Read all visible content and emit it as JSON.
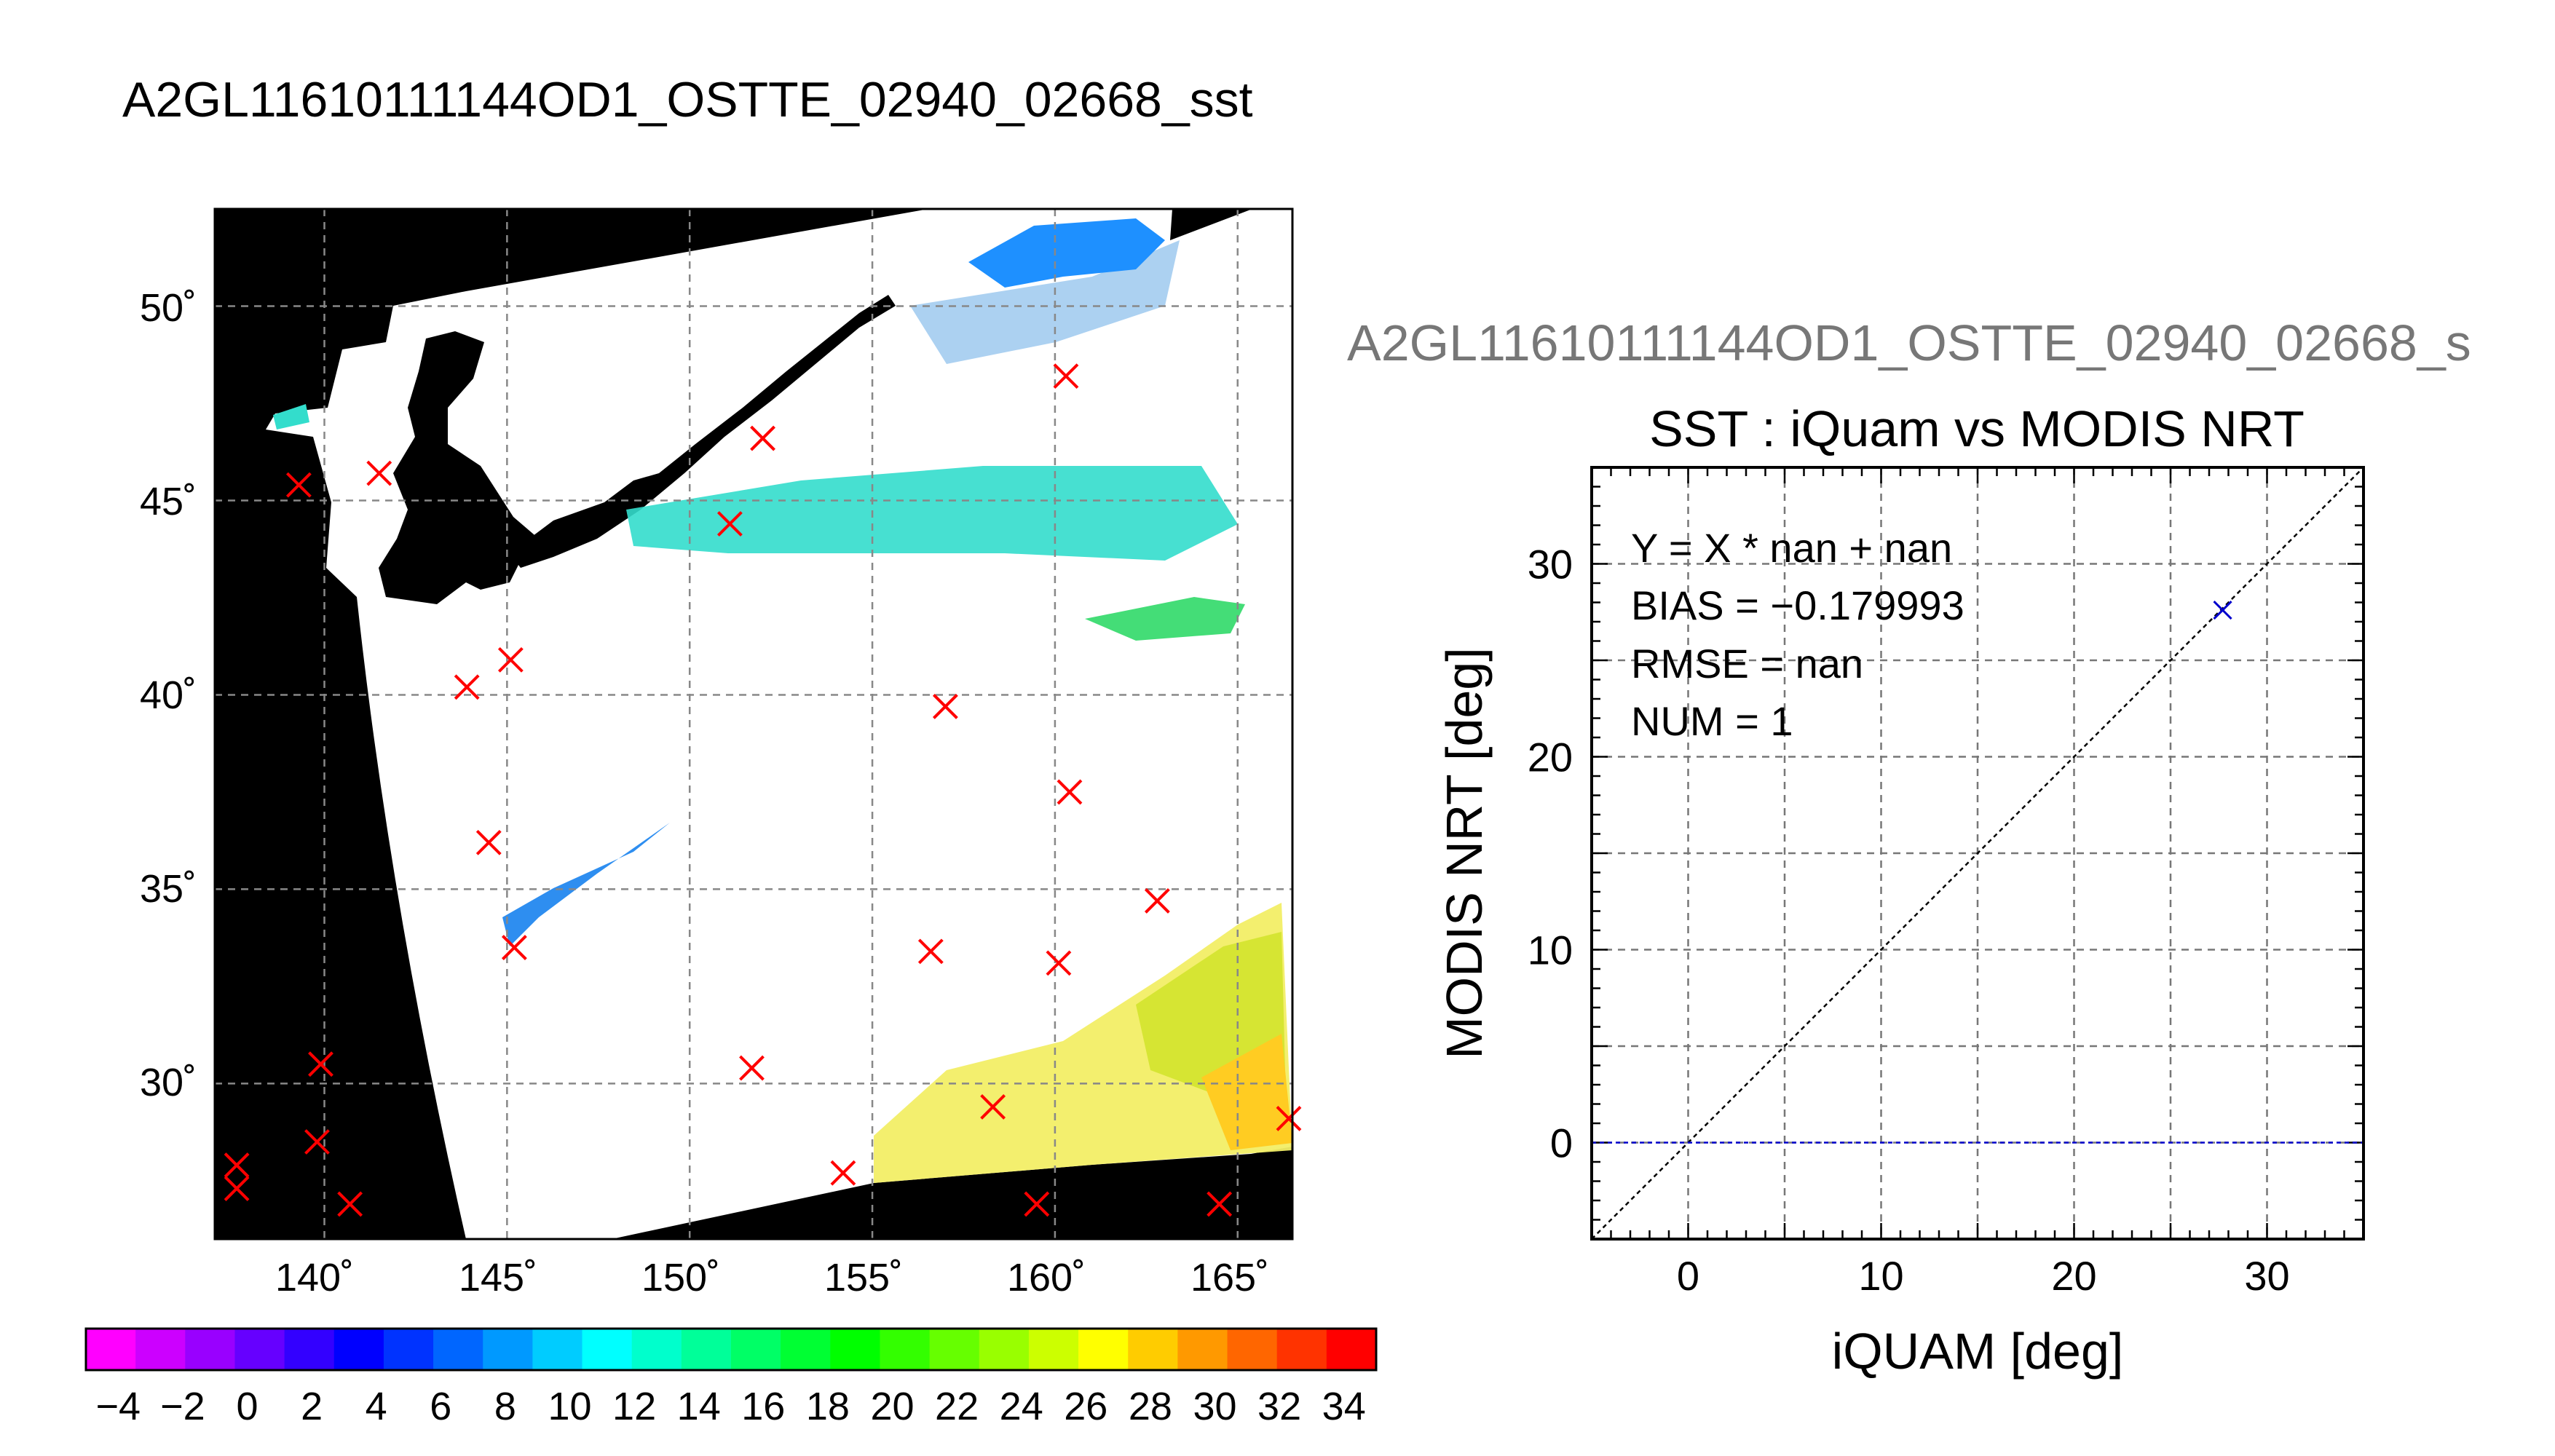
{
  "chart_data": [
    {
      "type": "map",
      "title": "A2GL11610111144OD1_OSTTE_02940_02668_sst",
      "xlim": [
        137,
        166.5
      ],
      "ylim": [
        26,
        52.5
      ],
      "xticks": [
        140,
        145,
        150,
        155,
        160,
        165
      ],
      "yticks": [
        30,
        35,
        40,
        45,
        50
      ],
      "xtick_labels": [
        "140˚",
        "145˚",
        "150˚",
        "155˚",
        "160˚",
        "165˚"
      ],
      "ytick_labels": [
        "30˚",
        "35˚",
        "40˚",
        "45˚",
        "50˚"
      ],
      "grid": true,
      "marker_color": "#ff0000",
      "background_color": "#000000",
      "swath_color": "#ffffff",
      "markers": [
        {
          "lon": 139.3,
          "lat": 45.4
        },
        {
          "lon": 141.5,
          "lat": 45.7
        },
        {
          "lon": 151.1,
          "lat": 44.4
        },
        {
          "lon": 152.0,
          "lat": 46.6
        },
        {
          "lon": 160.3,
          "lat": 48.2
        },
        {
          "lon": 143.9,
          "lat": 40.2
        },
        {
          "lon": 145.1,
          "lat": 40.9
        },
        {
          "lon": 157.0,
          "lat": 39.7
        },
        {
          "lon": 160.4,
          "lat": 37.5
        },
        {
          "lon": 144.5,
          "lat": 36.2
        },
        {
          "lon": 145.2,
          "lat": 33.5
        },
        {
          "lon": 156.6,
          "lat": 33.4
        },
        {
          "lon": 160.1,
          "lat": 33.1
        },
        {
          "lon": 162.8,
          "lat": 34.7
        },
        {
          "lon": 139.9,
          "lat": 30.5
        },
        {
          "lon": 151.7,
          "lat": 30.4
        },
        {
          "lon": 158.3,
          "lat": 29.4
        },
        {
          "lon": 139.8,
          "lat": 28.5
        },
        {
          "lon": 137.6,
          "lat": 27.9
        },
        {
          "lon": 137.6,
          "lat": 27.3
        },
        {
          "lon": 140.7,
          "lat": 26.9
        },
        {
          "lon": 154.2,
          "lat": 27.7
        },
        {
          "lon": 159.5,
          "lat": 26.9
        },
        {
          "lon": 164.5,
          "lat": 26.9
        },
        {
          "lon": 166.4,
          "lat": 29.1
        }
      ]
    },
    {
      "type": "colorbar",
      "range": [
        -5,
        35
      ],
      "tick_labels": [
        "−4",
        "−2",
        "0",
        "2",
        "4",
        "6",
        "8",
        "10",
        "12",
        "14",
        "16",
        "18",
        "20",
        "22",
        "24",
        "26",
        "28",
        "30",
        "32",
        "34"
      ],
      "colors": [
        "#ff00ff",
        "#cc00ff",
        "#9900ff",
        "#6600ff",
        "#3300ff",
        "#0000ff",
        "#0033ff",
        "#0066ff",
        "#0099ff",
        "#00ccff",
        "#00ffff",
        "#00ffcc",
        "#00ff99",
        "#00ff66",
        "#00ff33",
        "#00ff00",
        "#33ff00",
        "#66ff00",
        "#99ff00",
        "#ccff00",
        "#ffff00",
        "#ffcc00",
        "#ff9900",
        "#ff6600",
        "#ff3300",
        "#ff0000"
      ]
    },
    {
      "type": "scatter",
      "header": "A2GL11610111144OD1_OSTTE_02940_02668_s",
      "title": "SST : iQuam vs MODIS NRT",
      "xlabel": "iQUAM [deg]",
      "ylabel": "MODIS NRT [deg]",
      "xlim": [
        -5,
        35
      ],
      "ylim": [
        -5,
        35
      ],
      "xticks": [
        0,
        10,
        20,
        30
      ],
      "yticks": [
        0,
        10,
        20,
        30
      ],
      "grid": true,
      "points": [
        {
          "x": 27.7,
          "y": 27.6
        }
      ],
      "point_color": "#0000cc",
      "reference_lines": [
        {
          "name": "one-to-one",
          "from": [
            -5,
            -5
          ],
          "to": [
            35,
            35
          ],
          "color": "#000000"
        },
        {
          "name": "fit",
          "from": [
            -5,
            0
          ],
          "to": [
            35,
            0
          ],
          "color": "#0000cc"
        }
      ],
      "stats": [
        "Y = X * nan + nan",
        "BIAS = −0.179993",
        "RMSE = nan",
        "NUM = 1"
      ]
    }
  ]
}
